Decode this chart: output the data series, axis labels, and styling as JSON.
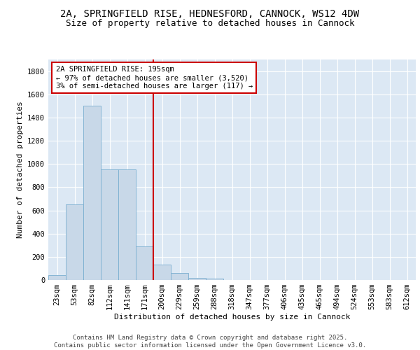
{
  "title_line1": "2A, SPRINGFIELD RISE, HEDNESFORD, CANNOCK, WS12 4DW",
  "title_line2": "Size of property relative to detached houses in Cannock",
  "xlabel": "Distribution of detached houses by size in Cannock",
  "ylabel": "Number of detached properties",
  "bar_color": "#c8d8e8",
  "bar_edgecolor": "#7aaed0",
  "background_color": "#dce8f4",
  "grid_color": "#ffffff",
  "vline_color": "#cc0000",
  "annotation_box_text": "2A SPRINGFIELD RISE: 195sqm\n← 97% of detached houses are smaller (3,520)\n3% of semi-detached houses are larger (117) →",
  "annotation_box_color": "#cc0000",
  "footer_text": "Contains HM Land Registry data © Crown copyright and database right 2025.\nContains public sector information licensed under the Open Government Licence v3.0.",
  "categories": [
    "23sqm",
    "53sqm",
    "82sqm",
    "112sqm",
    "141sqm",
    "171sqm",
    "200sqm",
    "229sqm",
    "259sqm",
    "288sqm",
    "318sqm",
    "347sqm",
    "377sqm",
    "406sqm",
    "435sqm",
    "465sqm",
    "494sqm",
    "524sqm",
    "553sqm",
    "583sqm",
    "612sqm"
  ],
  "values": [
    40,
    650,
    1500,
    950,
    950,
    290,
    130,
    60,
    20,
    10,
    0,
    0,
    0,
    0,
    0,
    0,
    0,
    0,
    0,
    0,
    0
  ],
  "ylim": [
    0,
    1900
  ],
  "yticks": [
    0,
    200,
    400,
    600,
    800,
    1000,
    1200,
    1400,
    1600,
    1800
  ],
  "title_fontsize": 10,
  "subtitle_fontsize": 9,
  "axis_label_fontsize": 8,
  "tick_fontsize": 7.5,
  "annotation_fontsize": 7.5,
  "footer_fontsize": 6.5
}
